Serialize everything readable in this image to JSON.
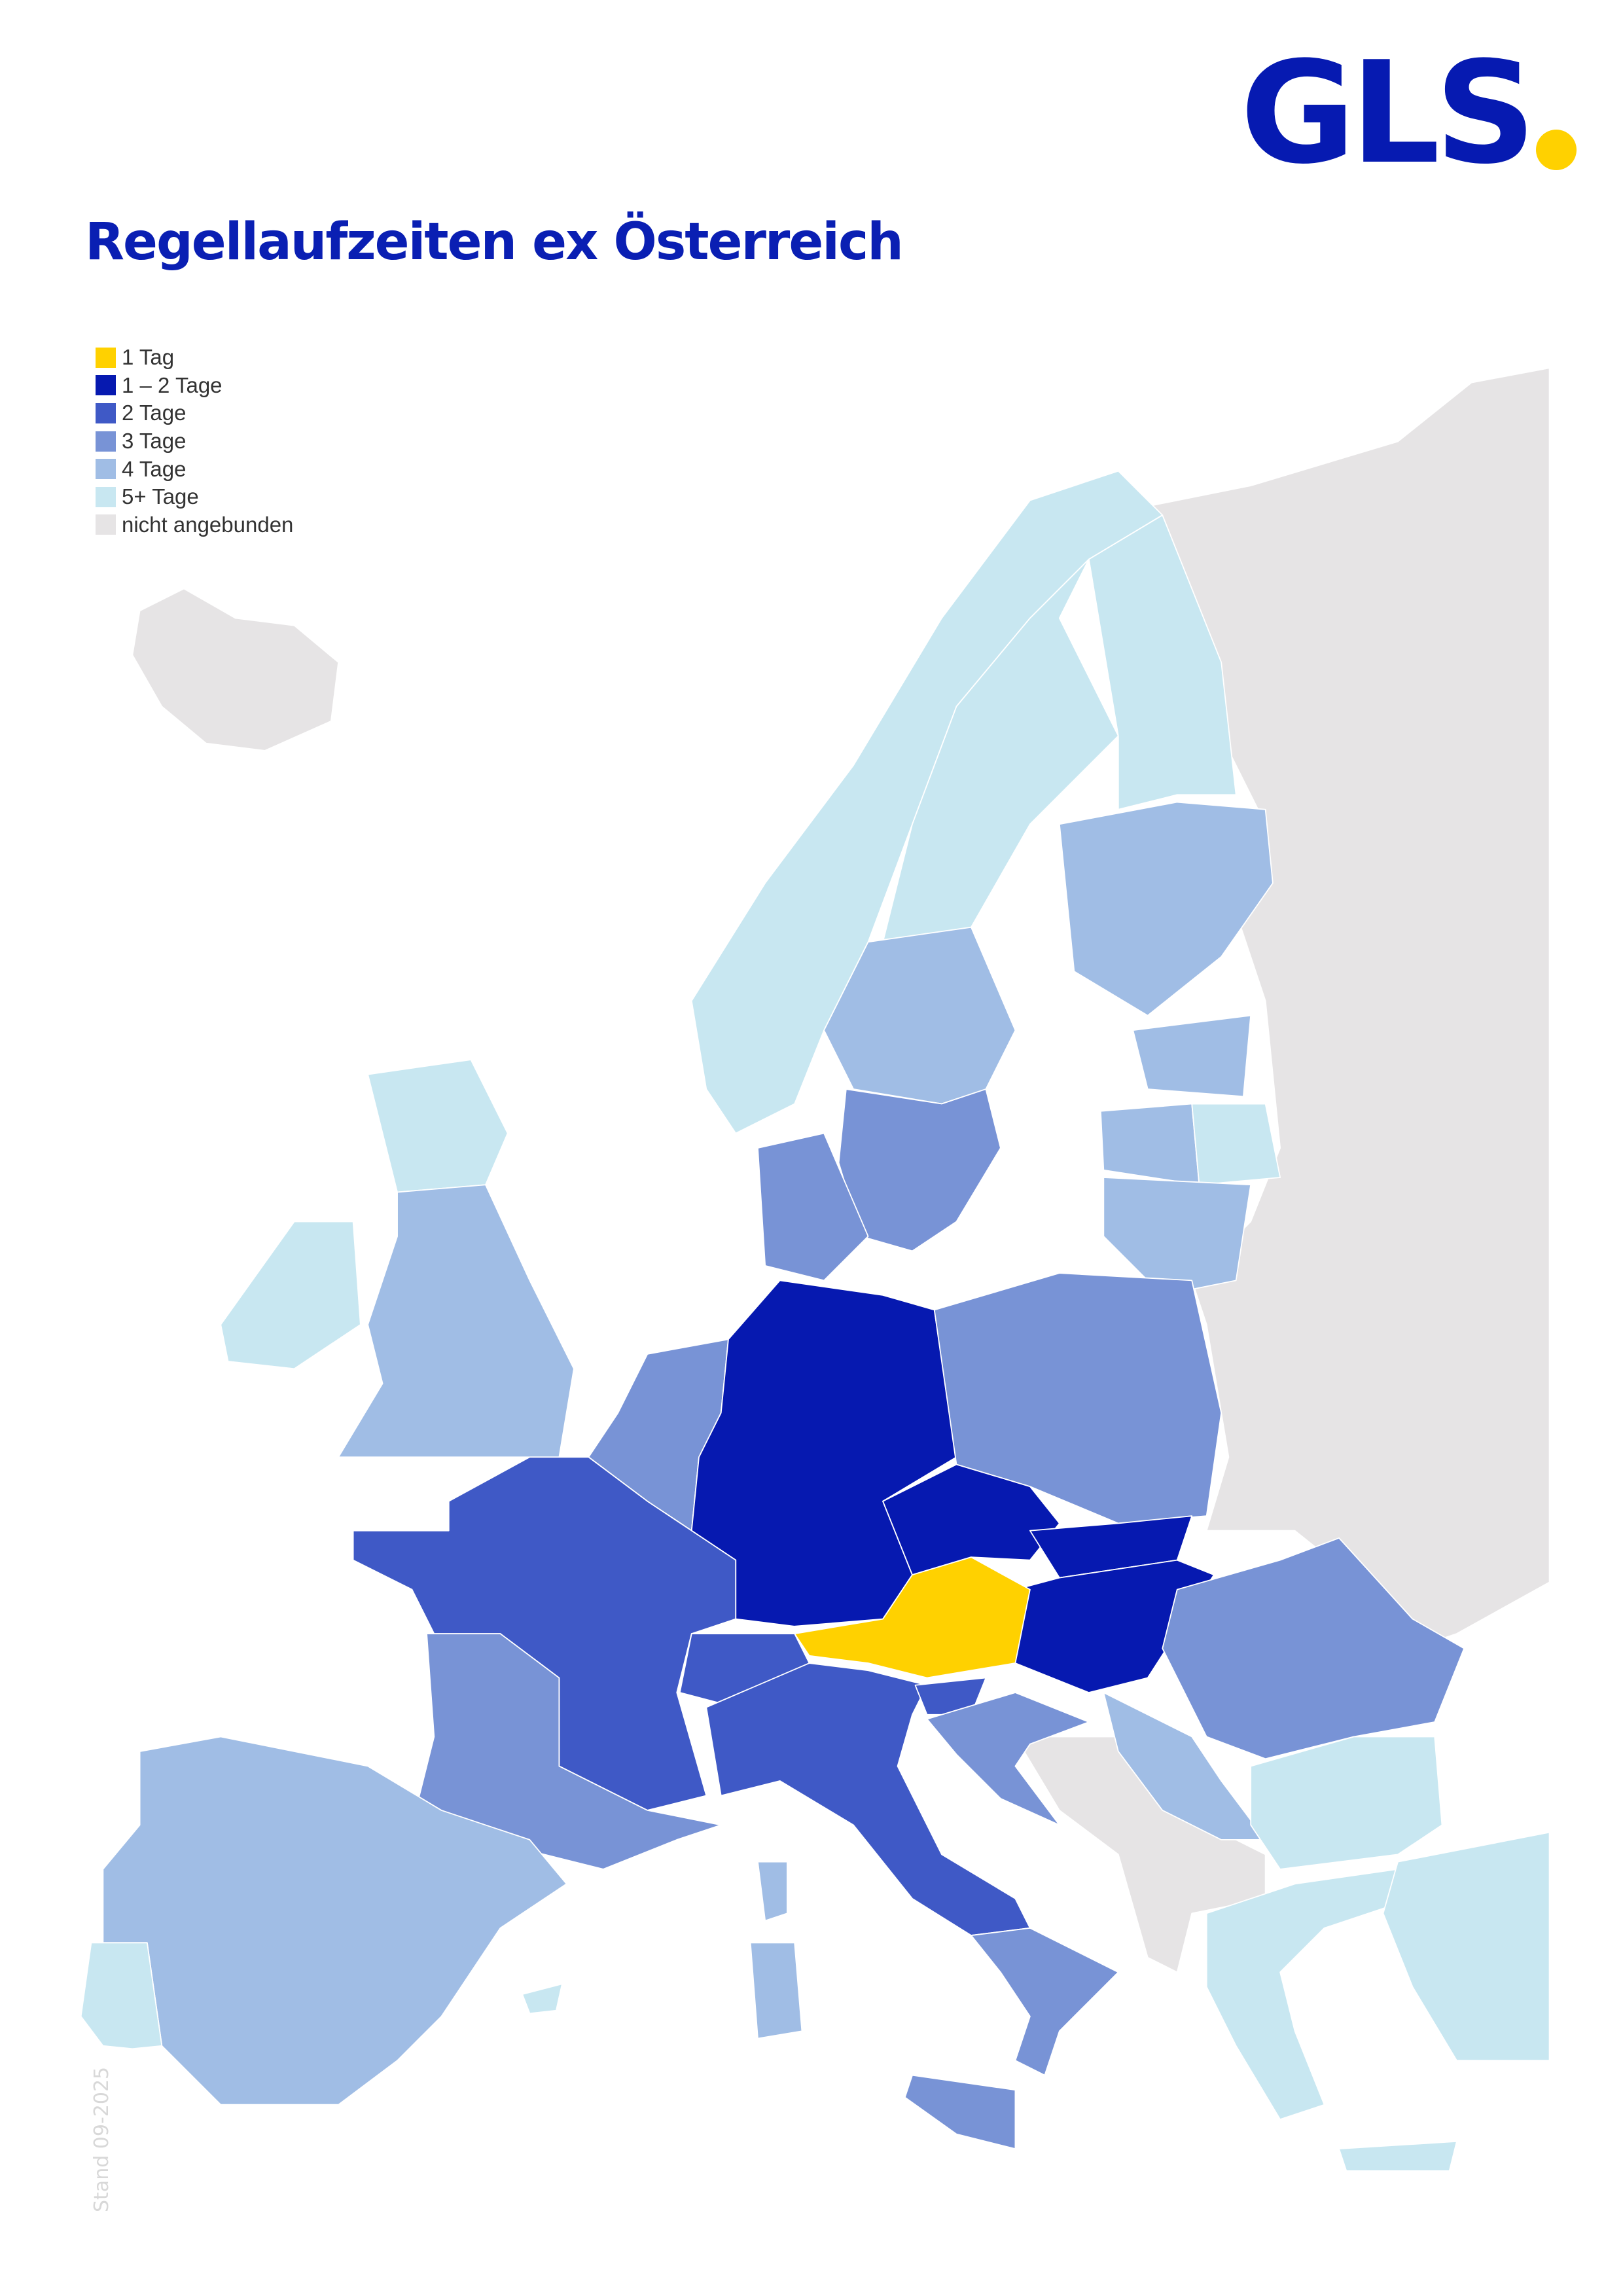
{
  "logo": {
    "text": "GLS",
    "text_color": "#061ab1",
    "dot_color": "#ffd100"
  },
  "title": "Regellaufzeiten ex Österreich",
  "legend": [
    {
      "key": "d1",
      "label": "1 Tag",
      "color": "#ffd100"
    },
    {
      "key": "d12",
      "label": "1 – 2 Tage",
      "color": "#0619b0"
    },
    {
      "key": "d2",
      "label": "2 Tage",
      "color": "#3f59c6"
    },
    {
      "key": "d3",
      "label": "3 Tage",
      "color": "#7893d6"
    },
    {
      "key": "d4",
      "label": "4 Tage",
      "color": "#a0bde5"
    },
    {
      "key": "d5",
      "label": "5+ Tage",
      "color": "#c8e7f1"
    },
    {
      "key": "none",
      "label": "nicht angebunden",
      "color": "#e6e4e5"
    }
  ],
  "regions": {
    "russia-belarus-ukraine": "none",
    "iceland": "none",
    "western-balkans": "none",
    "norway": "d5",
    "sweden-north": "d5",
    "sweden-middle": "d4",
    "sweden-south": "d3",
    "finland-north": "d5",
    "finland-south": "d4",
    "estonia": "d4",
    "latvia-west": "d4",
    "latvia-east": "d5",
    "lithuania": "d4",
    "denmark": "d3",
    "scotland": "d5",
    "england-wales": "d4",
    "ireland": "d5",
    "benelux": "d3",
    "germany": "d12",
    "poland": "d3",
    "czechia": "d12",
    "slovakia": "d12",
    "hungary": "d12",
    "austria": "d1",
    "france": "d2",
    "france-southwest": "d3",
    "switzerland": "d2",
    "italy-north-central": "d2",
    "italy-south": "d3",
    "sicily": "d3",
    "sardinia": "d4",
    "corsica": "d4",
    "slovenia": "d2",
    "croatia": "d3",
    "serbia": "d4",
    "romania": "d3",
    "bulgaria": "d5",
    "greece": "d5",
    "turkey": "d5",
    "crete": "d5",
    "spain": "d4",
    "portugal": "d5",
    "balearic": "d5"
  },
  "footer": {
    "stand": "Stand 09-2025"
  }
}
